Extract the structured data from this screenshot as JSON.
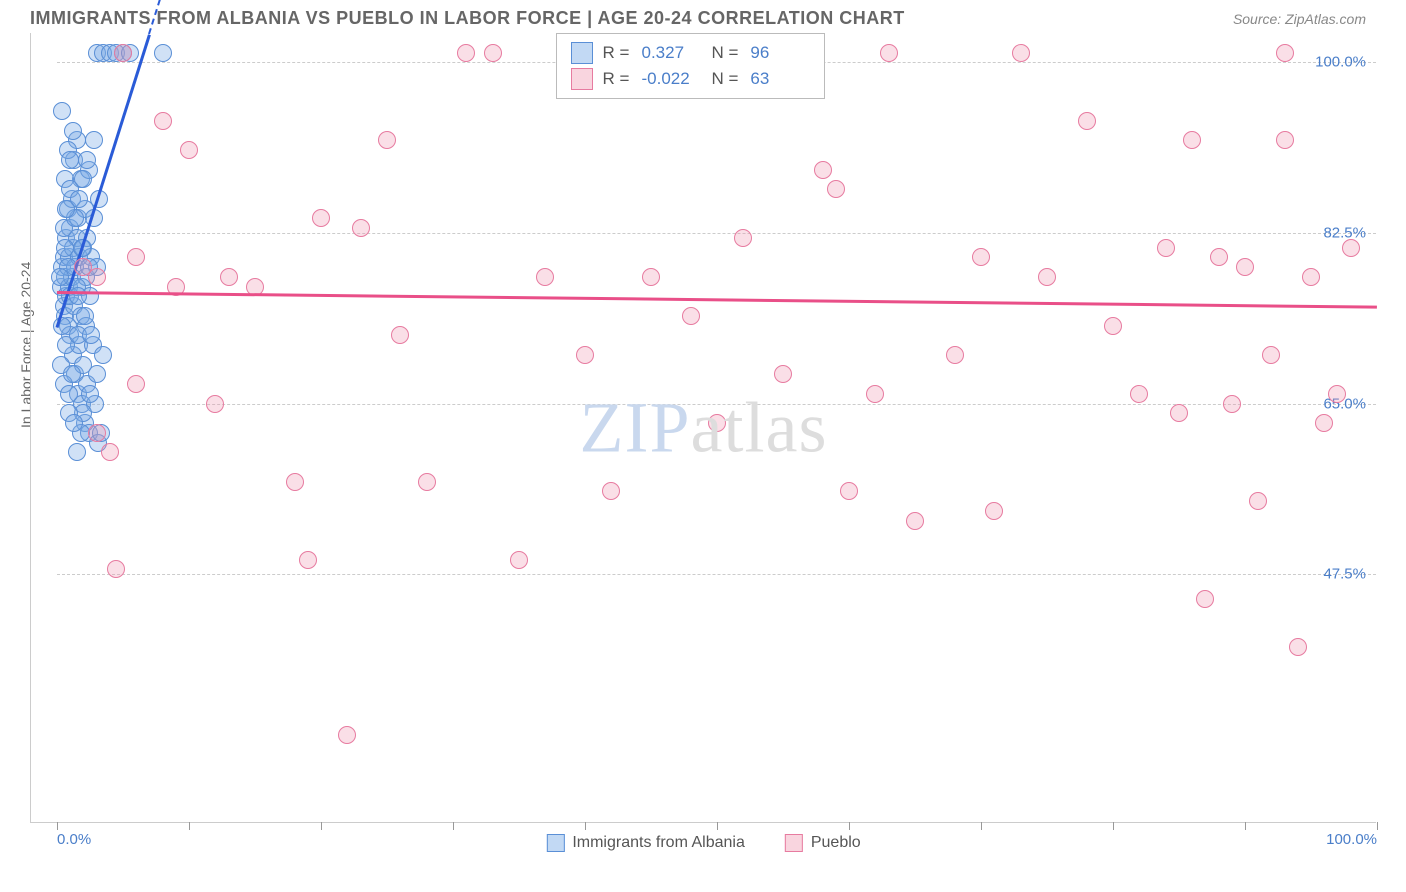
{
  "header": {
    "title": "IMMIGRANTS FROM ALBANIA VS PUEBLO IN LABOR FORCE | AGE 20-24 CORRELATION CHART",
    "source": "Source: ZipAtlas.com"
  },
  "chart": {
    "type": "scatter",
    "ylabel": "In Labor Force | Age 20-24",
    "xlim": [
      0,
      100
    ],
    "ylim": [
      22,
      103
    ],
    "background_color": "#ffffff",
    "grid_color": "#cccccc",
    "yticks": [
      {
        "v": 100.0,
        "label": "100.0%"
      },
      {
        "v": 82.5,
        "label": "82.5%"
      },
      {
        "v": 65.0,
        "label": "65.0%"
      },
      {
        "v": 47.5,
        "label": "47.5%"
      }
    ],
    "xtick_positions": [
      0,
      10,
      20,
      30,
      40,
      50,
      60,
      70,
      80,
      90,
      100
    ],
    "xtick_labels": [
      {
        "v": 0,
        "label": "0.0%",
        "align": "left"
      },
      {
        "v": 100,
        "label": "100.0%",
        "align": "right"
      }
    ],
    "marker_radius": 9,
    "series": [
      {
        "name": "Immigrants from Albania",
        "fill": "rgba(120,170,230,0.35)",
        "stroke": "#5a8fd6",
        "trend_color": "#2a5bd7",
        "r": 0.327,
        "n": 96,
        "points": [
          [
            0.3,
            77
          ],
          [
            0.4,
            79
          ],
          [
            0.5,
            75
          ],
          [
            0.5,
            80
          ],
          [
            0.6,
            78
          ],
          [
            0.6,
            74
          ],
          [
            0.7,
            82
          ],
          [
            0.7,
            76
          ],
          [
            0.8,
            73
          ],
          [
            0.8,
            85
          ],
          [
            0.9,
            80
          ],
          [
            0.9,
            77
          ],
          [
            1.0,
            83
          ],
          [
            1.0,
            72
          ],
          [
            1.1,
            78
          ],
          [
            1.1,
            86
          ],
          [
            1.2,
            70
          ],
          [
            1.2,
            81
          ],
          [
            1.3,
            75
          ],
          [
            1.3,
            90
          ],
          [
            1.4,
            79
          ],
          [
            1.4,
            68
          ],
          [
            1.5,
            82
          ],
          [
            1.5,
            92
          ],
          [
            1.6,
            66
          ],
          [
            1.6,
            84
          ],
          [
            1.7,
            71
          ],
          [
            1.7,
            80
          ],
          [
            1.8,
            88
          ],
          [
            1.8,
            74
          ],
          [
            1.9,
            77
          ],
          [
            1.9,
            65
          ],
          [
            2.0,
            81
          ],
          [
            2.0,
            69
          ],
          [
            2.1,
            85
          ],
          [
            2.1,
            63
          ],
          [
            2.2,
            78
          ],
          [
            2.2,
            73
          ],
          [
            2.3,
            82
          ],
          [
            2.3,
            67
          ],
          [
            2.4,
            89
          ],
          [
            2.4,
            62
          ],
          [
            2.5,
            76
          ],
          [
            2.6,
            80
          ],
          [
            2.7,
            71
          ],
          [
            2.8,
            84
          ],
          [
            2.9,
            65
          ],
          [
            3.0,
            79
          ],
          [
            3.1,
            61
          ],
          [
            3.2,
            86
          ],
          [
            0.4,
            95
          ],
          [
            0.6,
            88
          ],
          [
            0.8,
            91
          ],
          [
            1.0,
            87
          ],
          [
            1.2,
            93
          ],
          [
            1.5,
            60
          ],
          [
            1.8,
            62
          ],
          [
            2.0,
            64
          ],
          [
            2.5,
            66
          ],
          [
            3.5,
            70
          ],
          [
            0.3,
            69
          ],
          [
            0.5,
            67
          ],
          [
            0.7,
            71
          ],
          [
            0.9,
            64
          ],
          [
            1.1,
            68
          ],
          [
            1.3,
            63
          ],
          [
            1.6,
            72
          ],
          [
            2.0,
            88
          ],
          [
            2.3,
            90
          ],
          [
            2.8,
            92
          ],
          [
            3.0,
            101
          ],
          [
            3.5,
            101
          ],
          [
            4.0,
            101
          ],
          [
            4.5,
            101
          ],
          [
            5.0,
            101
          ],
          [
            5.5,
            101
          ],
          [
            8.0,
            101
          ],
          [
            0.5,
            83
          ],
          [
            0.6,
            81
          ],
          [
            0.8,
            79
          ],
          [
            1.0,
            76
          ],
          [
            1.4,
            84
          ],
          [
            1.7,
            86
          ],
          [
            2.1,
            74
          ],
          [
            2.6,
            72
          ],
          [
            3.0,
            68
          ],
          [
            3.3,
            62
          ],
          [
            0.4,
            73
          ],
          [
            0.7,
            85
          ],
          [
            1.0,
            90
          ],
          [
            1.5,
            77
          ],
          [
            1.9,
            81
          ],
          [
            2.4,
            79
          ],
          [
            0.9,
            66
          ],
          [
            1.6,
            76
          ],
          [
            0.2,
            78
          ]
        ],
        "trend": {
          "x1": 0,
          "y1": 73,
          "x2": 7,
          "y2": 103,
          "extend": true
        }
      },
      {
        "name": "Pueblo",
        "fill": "rgba(240,150,175,0.30)",
        "stroke": "#e77ba0",
        "trend_color": "#e94f88",
        "r": -0.022,
        "n": 63,
        "points": [
          [
            3,
            78
          ],
          [
            3,
            62
          ],
          [
            4,
            60
          ],
          [
            4.5,
            48
          ],
          [
            5,
            101
          ],
          [
            6,
            67
          ],
          [
            8,
            94
          ],
          [
            9,
            77
          ],
          [
            10,
            91
          ],
          [
            12,
            65
          ],
          [
            13,
            78
          ],
          [
            15,
            77
          ],
          [
            18,
            57
          ],
          [
            19,
            49
          ],
          [
            20,
            84
          ],
          [
            22,
            31
          ],
          [
            23,
            83
          ],
          [
            25,
            92
          ],
          [
            26,
            72
          ],
          [
            28,
            57
          ],
          [
            31,
            101
          ],
          [
            33,
            101
          ],
          [
            35,
            49
          ],
          [
            37,
            78
          ],
          [
            40,
            70
          ],
          [
            42,
            56
          ],
          [
            45,
            78
          ],
          [
            48,
            74
          ],
          [
            50,
            63
          ],
          [
            52,
            82
          ],
          [
            55,
            68
          ],
          [
            58,
            89
          ],
          [
            59,
            87
          ],
          [
            60,
            56
          ],
          [
            62,
            66
          ],
          [
            63,
            101
          ],
          [
            65,
            53
          ],
          [
            68,
            70
          ],
          [
            70,
            80
          ],
          [
            71,
            54
          ],
          [
            73,
            101
          ],
          [
            75,
            78
          ],
          [
            78,
            94
          ],
          [
            80,
            73
          ],
          [
            82,
            66
          ],
          [
            84,
            81
          ],
          [
            85,
            64
          ],
          [
            86,
            92
          ],
          [
            87,
            45
          ],
          [
            88,
            80
          ],
          [
            89,
            65
          ],
          [
            90,
            79
          ],
          [
            91,
            55
          ],
          [
            92,
            70
          ],
          [
            93,
            101
          ],
          [
            93,
            92
          ],
          [
            94,
            40
          ],
          [
            95,
            78
          ],
          [
            96,
            63
          ],
          [
            97,
            66
          ],
          [
            98,
            81
          ],
          [
            2,
            79
          ],
          [
            6,
            80
          ]
        ],
        "trend": {
          "x1": 0,
          "y1": 76.5,
          "x2": 100,
          "y2": 75.0,
          "extend": false
        }
      }
    ],
    "legend_top": {
      "rows": [
        {
          "swatch_fill": "rgba(120,170,230,0.45)",
          "swatch_stroke": "#5a8fd6",
          "r_label": "R =",
          "r_val": "0.327",
          "n_label": "N =",
          "n_val": "96"
        },
        {
          "swatch_fill": "rgba(240,150,175,0.40)",
          "swatch_stroke": "#e77ba0",
          "r_label": "R =",
          "r_val": "-0.022",
          "n_label": "N =",
          "n_val": "63"
        }
      ]
    },
    "legend_bottom": [
      {
        "swatch_fill": "rgba(120,170,230,0.45)",
        "swatch_stroke": "#5a8fd6",
        "label": "Immigrants from Albania"
      },
      {
        "swatch_fill": "rgba(240,150,175,0.40)",
        "swatch_stroke": "#e77ba0",
        "label": "Pueblo"
      }
    ],
    "watermark": {
      "a": "ZIP",
      "b": "atlas"
    }
  }
}
